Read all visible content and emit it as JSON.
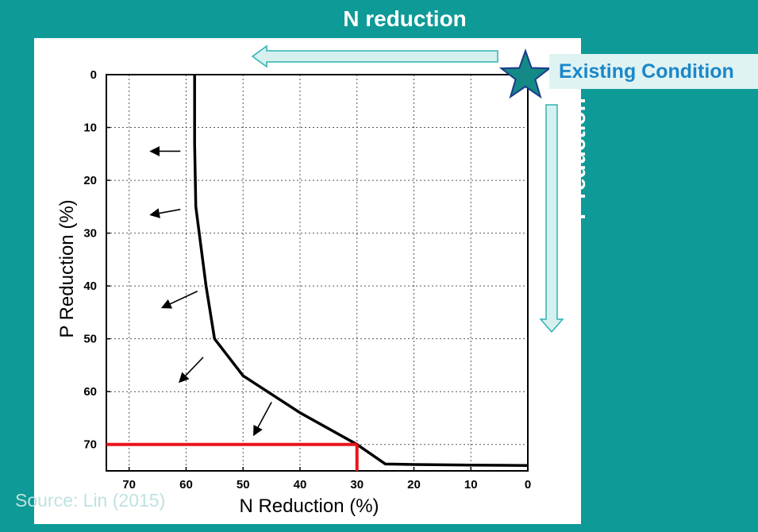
{
  "header": {
    "n_reduction_label": "N reduction",
    "p_reduction_label": "P reduction",
    "existing_condition_label": "Existing Condition"
  },
  "footer": {
    "source": "Source: Lin (2015)"
  },
  "colors": {
    "background": "#0e9a96",
    "curve": "#000000",
    "highlight": "#e8151b",
    "arrow_fill": "#d6f0f0",
    "star": "#138a86"
  },
  "chart_data": {
    "type": "line",
    "xlabel": "N Reduction (%)",
    "ylabel": "P Reduction (%)",
    "xlim": [
      74,
      0
    ],
    "ylim": [
      75,
      0
    ],
    "x_ticks": [
      70,
      60,
      50,
      40,
      30,
      20,
      10,
      0
    ],
    "y_ticks": [
      0,
      10,
      20,
      30,
      40,
      50,
      60,
      70
    ],
    "grid": true,
    "series": [
      {
        "points": [
          [
            58.5,
            0
          ],
          [
            58.5,
            13
          ],
          [
            58.3,
            25
          ],
          [
            56.5,
            40
          ],
          [
            55,
            50
          ],
          [
            50,
            57
          ],
          [
            40,
            64
          ],
          [
            30,
            70
          ],
          [
            25,
            73.7
          ],
          [
            20,
            73.8
          ],
          [
            10,
            73.9
          ],
          [
            0,
            74
          ]
        ]
      }
    ],
    "highlight": {
      "x": 30,
      "y": 70
    },
    "direction_arrows": [
      {
        "from": [
          61,
          14.5
        ],
        "to": [
          66,
          14.5
        ]
      },
      {
        "from": [
          61,
          25.5
        ],
        "to": [
          66,
          26.5
        ]
      },
      {
        "from": [
          58,
          41
        ],
        "to": [
          64,
          44
        ]
      },
      {
        "from": [
          57,
          53.5
        ],
        "to": [
          61,
          58
        ]
      },
      {
        "from": [
          45,
          62
        ],
        "to": [
          48,
          68
        ]
      }
    ]
  }
}
